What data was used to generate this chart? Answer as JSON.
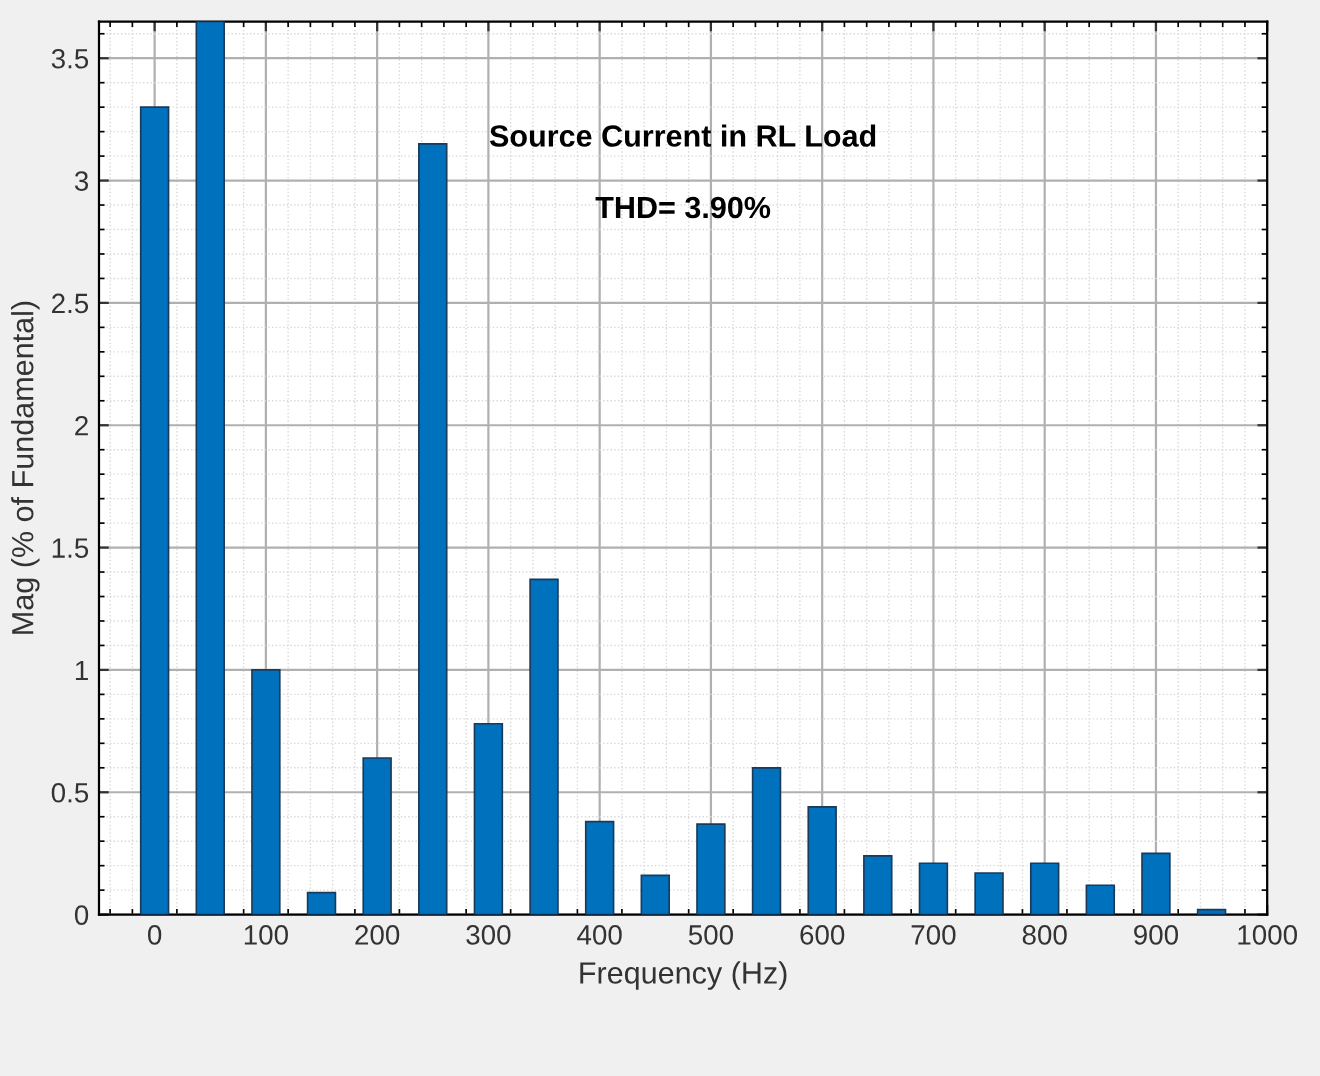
{
  "chart_data": {
    "type": "bar",
    "title": "Source Current in RL Load",
    "subtitle": "THD= 3.90%",
    "xlabel": "Frequency (Hz)",
    "ylabel": "Mag (% of Fundamental)",
    "x": [
      0,
      50,
      100,
      150,
      200,
      250,
      300,
      350,
      400,
      450,
      500,
      550,
      600,
      650,
      700,
      750,
      800,
      850,
      900,
      950
    ],
    "values": [
      3.3,
      3.65,
      1.0,
      0.09,
      0.64,
      3.15,
      0.78,
      1.37,
      0.38,
      0.16,
      0.37,
      0.6,
      0.44,
      0.24,
      0.21,
      0.17,
      0.21,
      0.12,
      0.25,
      0.02
    ],
    "color": "#0072bd",
    "xlim": [
      -50,
      1000
    ],
    "xticks": [
      0,
      100,
      200,
      300,
      400,
      500,
      600,
      700,
      800,
      900,
      1000
    ],
    "ylim": [
      0,
      3.65
    ],
    "yticks": [
      0,
      0.5,
      1,
      1.5,
      2,
      2.5,
      3,
      3.5
    ],
    "grid": true
  }
}
